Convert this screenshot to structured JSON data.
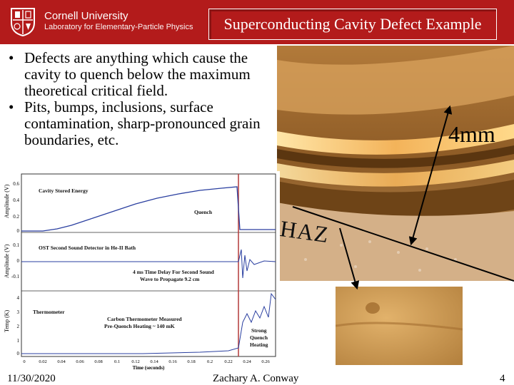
{
  "header": {
    "university": "Cornell University",
    "lab": "Laboratory for Elementary-Particle Physics",
    "title": "Superconducting Cavity Defect Example"
  },
  "bullets": [
    "Defects are anything which cause the cavity to quench below the maximum theoretical critical field.",
    "Pits, bumps, inclusions, surface contamination, sharp-pronounced grain boundaries, etc."
  ],
  "photo": {
    "scale_label": "4mm",
    "region_label": "HAZ"
  },
  "plot": {
    "ylabel_top": "Amplitude (V)",
    "ylabel_mid": "Amplitude (V)",
    "ylabel_bottom": "Temp (K)",
    "panel1_title": "Cavity Stored Energy",
    "panel1_note": "Quench",
    "panel2_title": "OST Second Sound Detector in He-II Bath",
    "panel2_note1": "4 ms Time Delay For Second Sound",
    "panel2_note2": "Wave to Propagate 9.2 cm",
    "panel3_title": "Thermometer",
    "panel3_note1": "Carbon Thermometer Measured",
    "panel3_note2": "Pre-Quench Heating ~ 140 mK",
    "panel3_note3": "Strong",
    "panel3_note4": "Quench",
    "panel3_note5": "Heating",
    "xlabel": "Time (seconds)",
    "yticks_top": [
      "0.6",
      "0.4",
      "0.2",
      "0"
    ],
    "yticks_mid": [
      "0.1",
      "0",
      "-0.1"
    ],
    "yticks_bottom": [
      "4",
      "3",
      "2",
      "1",
      "0"
    ],
    "xticks": [
      "0",
      "0.02",
      "0.04",
      "0.06",
      "0.08",
      "0.1",
      "0.12",
      "0.14",
      "0.16",
      "0.18",
      "0.2",
      "0.22",
      "0.24",
      "0.26"
    ]
  },
  "footer": {
    "date": "11/30/2020",
    "author": "Zachary A. Conway",
    "page": "4"
  },
  "colors": {
    "header_red": "#b31b1b",
    "trace_blue": "#2a3fa0",
    "quench_line": "#b33a3a",
    "copper": "#c8893a"
  }
}
